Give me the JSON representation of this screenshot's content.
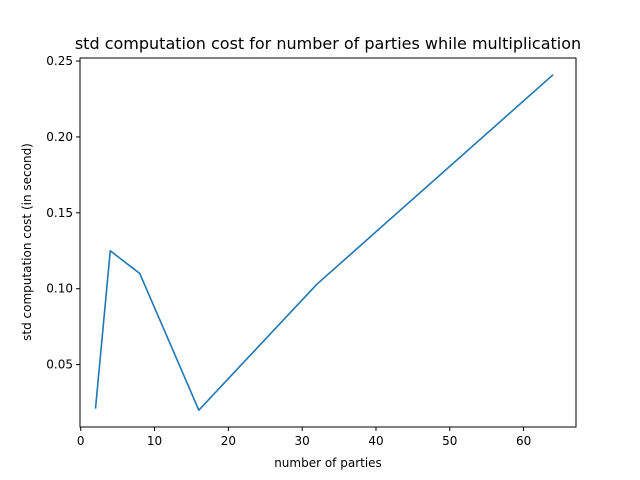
{
  "chart_data": {
    "type": "line",
    "title": "std computation cost for number of parties while multiplication",
    "xlabel": "number of parties",
    "ylabel": "std computation cost (in second)",
    "xlim": [
      -0.1,
      67.1
    ],
    "ylim": [
      0.0089,
      0.252
    ],
    "xticks": [
      0,
      10,
      20,
      30,
      40,
      50,
      60
    ],
    "xtick_labels": [
      "0",
      "10",
      "20",
      "30",
      "40",
      "50",
      "60"
    ],
    "yticks": [
      0.05,
      0.1,
      0.15,
      0.2,
      0.25
    ],
    "ytick_labels": [
      "0.05",
      "0.10",
      "0.15",
      "0.20",
      "0.25"
    ],
    "grid": false,
    "series": [
      {
        "color": "#1f77b4",
        "x": [
          2,
          4,
          8,
          16,
          32,
          64
        ],
        "y": [
          0.021,
          0.125,
          0.11,
          0.02,
          0.103,
          0.241
        ]
      }
    ]
  }
}
